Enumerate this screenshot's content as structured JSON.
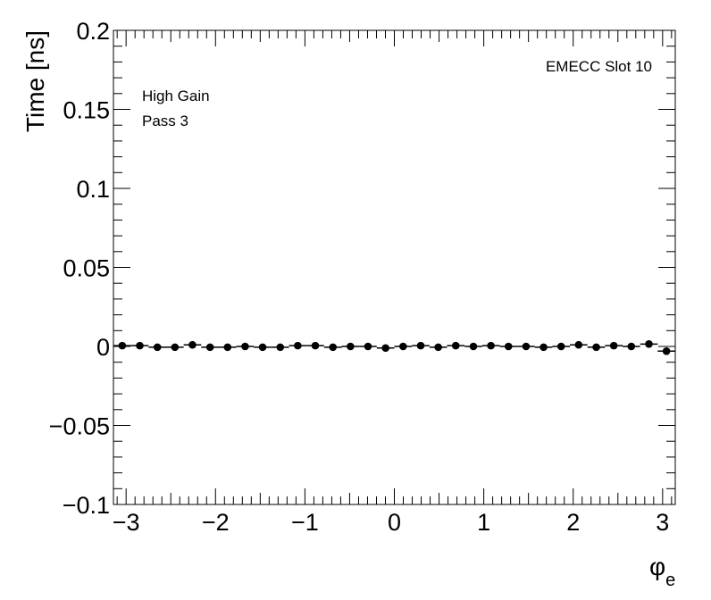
{
  "chart_data": {
    "type": "scatter",
    "ylabel": "Time [ns]",
    "xlabel": {
      "main": "φ",
      "sub": "e"
    },
    "annotations": {
      "top_right": "EMECC Slot 10",
      "line1": "High Gain",
      "line2": "Pass 3"
    },
    "xlim": [
      -3.14159,
      3.14159
    ],
    "ylim": [
      -0.1,
      0.2
    ],
    "xticks": [
      -3,
      -2,
      -1,
      0,
      1,
      2,
      3
    ],
    "xtick_labels": [
      "−3",
      "−2",
      "−1",
      "0",
      "1",
      "2",
      "3"
    ],
    "yticks": [
      -0.1,
      -0.05,
      0,
      0.05,
      0.1,
      0.15,
      0.2
    ],
    "ytick_labels": [
      "−0.1",
      "−0.05",
      "0",
      "0.05",
      "0.1",
      "0.15",
      "0.2"
    ],
    "grid": false,
    "marker_color": "#000000",
    "series": [
      {
        "x": [
          -3.043,
          -2.847,
          -2.65,
          -2.454,
          -2.258,
          -2.061,
          -1.865,
          -1.669,
          -1.473,
          -1.276,
          -1.08,
          -0.884,
          -0.687,
          -0.491,
          -0.295,
          -0.098,
          0.098,
          0.295,
          0.491,
          0.687,
          0.884,
          1.08,
          1.276,
          1.473,
          1.669,
          1.865,
          2.061,
          2.258,
          2.454,
          2.65,
          2.847,
          3.043
        ],
        "y": [
          0.0005,
          0.0005,
          -0.0005,
          -0.0005,
          0.001,
          -0.0005,
          -0.0005,
          0.0,
          -0.0005,
          -0.0005,
          0.0005,
          0.0005,
          -0.0005,
          0.0,
          0.0,
          -0.001,
          0.0,
          0.0005,
          -0.0005,
          0.0005,
          0.0,
          0.0005,
          0.0,
          0.0,
          -0.0005,
          0.0,
          0.001,
          -0.0005,
          0.0005,
          0.0,
          0.0015,
          -0.003
        ],
        "yerr": 0.0005
      }
    ]
  }
}
